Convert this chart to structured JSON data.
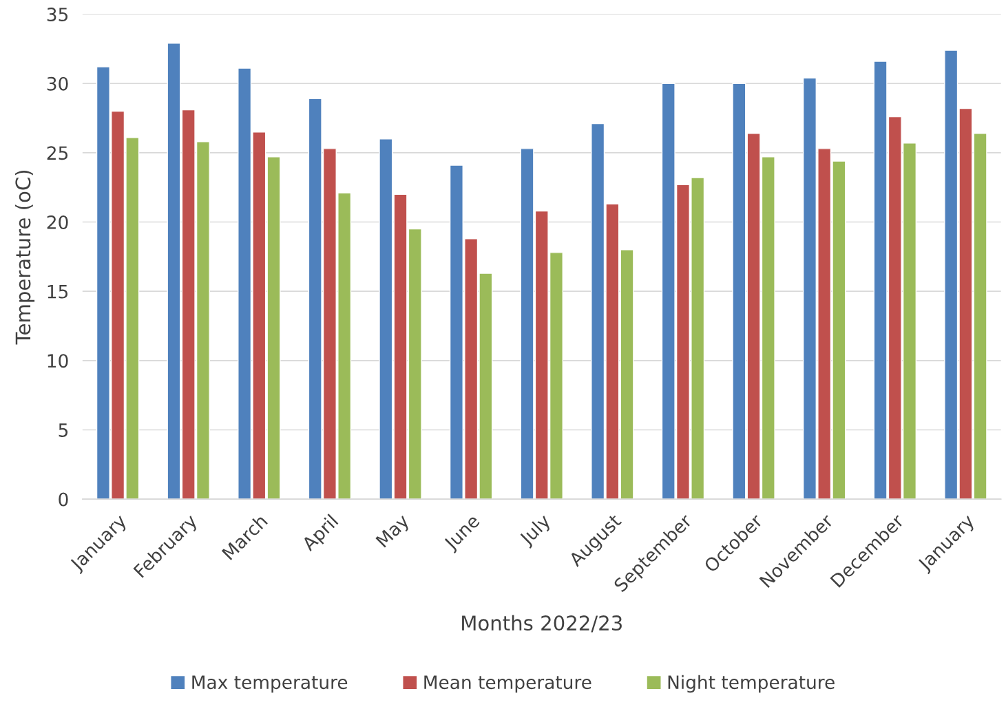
{
  "chart_data": {
    "type": "bar",
    "xlabel": "Months 2022/23",
    "ylabel": "Temperature (oC)",
    "categories": [
      "January",
      "February",
      "March",
      "April",
      "May",
      "June",
      "July",
      "August",
      "September",
      "October",
      "November",
      "December",
      "January"
    ],
    "series": [
      {
        "name": "Max temperature",
        "color": "#4f81bd",
        "values": [
          31.2,
          32.9,
          31.1,
          28.9,
          26.0,
          24.1,
          25.3,
          27.1,
          30.0,
          30.0,
          30.4,
          31.6,
          32.4
        ]
      },
      {
        "name": "Mean temperature",
        "color": "#c0504d",
        "values": [
          28.0,
          28.1,
          26.5,
          25.3,
          22.0,
          18.8,
          20.8,
          21.3,
          22.7,
          26.4,
          25.3,
          27.6,
          28.2
        ]
      },
      {
        "name": "Night temperature",
        "color": "#9bbb59",
        "values": [
          26.1,
          25.8,
          24.7,
          22.1,
          19.5,
          16.3,
          17.8,
          18.0,
          23.2,
          24.7,
          24.4,
          25.7,
          26.4
        ]
      }
    ],
    "ylim": [
      0,
      35
    ],
    "yticks": [
      0,
      5,
      10,
      15,
      20,
      25,
      30,
      35
    ],
    "grid": "y",
    "legend": "bottom"
  }
}
